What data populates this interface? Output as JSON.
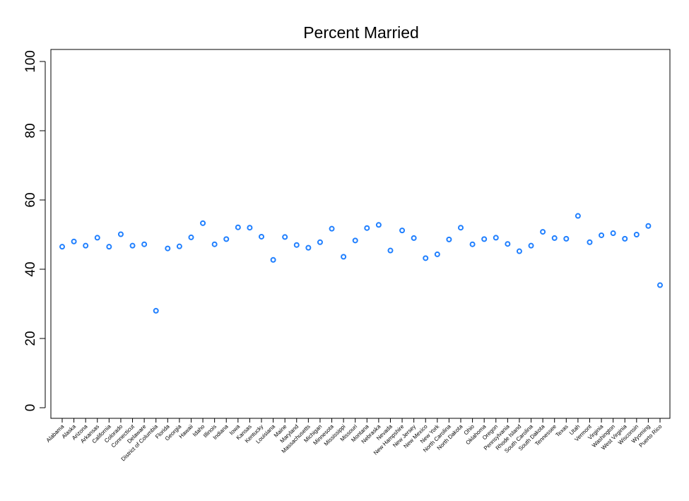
{
  "chart_data": {
    "type": "scatter",
    "title": "Percent Married",
    "xlabel": "",
    "ylabel": "",
    "ylim": [
      0,
      100
    ],
    "yticks": [
      0,
      20,
      40,
      60,
      80,
      100
    ],
    "marker_color": "#1f7fff",
    "grid": false,
    "categories": [
      "Alabama",
      "Alaska",
      "Arizona",
      "Arkansas",
      "California",
      "Colorado",
      "Connecticut",
      "Delaware",
      "District of Columbia",
      "Florida",
      "Georgia",
      "Hawaii",
      "Idaho",
      "Illinois",
      "Indiana",
      "Iowa",
      "Kansas",
      "Kentucky",
      "Louisiana",
      "Maine",
      "Maryland",
      "Massachusetts",
      "Michigan",
      "Minnesota",
      "Mississippi",
      "Missouri",
      "Montana",
      "Nebraska",
      "Nevada",
      "New Hampshire",
      "New Jersey",
      "New Mexico",
      "New York",
      "North Carolina",
      "North Dakota",
      "Ohio",
      "Oklahoma",
      "Oregon",
      "Pennsylvania",
      "Rhode Island",
      "South Carolina",
      "South Dakota",
      "Tennessee",
      "Texas",
      "Utah",
      "Vermont",
      "Virginia",
      "Washington",
      "West Virginia",
      "Wisconsin",
      "Wyoming",
      "Puerto Rico"
    ],
    "values": [
      46.5,
      48.0,
      46.8,
      49.1,
      46.5,
      50.1,
      46.8,
      47.2,
      28.0,
      46.0,
      46.6,
      49.2,
      53.3,
      47.2,
      48.7,
      52.1,
      52.0,
      49.4,
      42.7,
      49.3,
      47.0,
      46.2,
      47.8,
      51.7,
      43.6,
      48.3,
      51.9,
      52.8,
      45.4,
      51.2,
      49.0,
      43.2,
      44.3,
      48.6,
      52.0,
      47.2,
      48.7,
      49.1,
      47.3,
      45.2,
      46.8,
      50.8,
      49.0,
      48.8,
      55.4,
      47.8,
      49.8,
      50.4,
      48.8,
      50.0,
      52.5,
      35.4
    ]
  }
}
